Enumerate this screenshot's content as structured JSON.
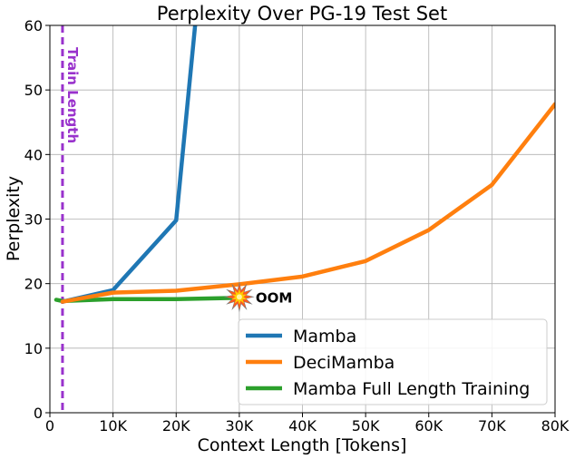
{
  "chart_data": {
    "type": "line",
    "title": "Perplexity Over PG-19 Test Set",
    "xlabel": "Context Length [Tokens]",
    "ylabel": "Perplexity",
    "xlim": [
      0,
      80000
    ],
    "ylim": [
      0,
      60
    ],
    "xticks": [
      0,
      10000,
      20000,
      30000,
      40000,
      50000,
      60000,
      70000,
      80000
    ],
    "xtick_labels": [
      "0",
      "10K",
      "20K",
      "30K",
      "40K",
      "50K",
      "60K",
      "70K",
      "80K"
    ],
    "yticks": [
      0,
      10,
      20,
      30,
      40,
      50,
      60
    ],
    "ytick_labels": [
      "0",
      "10",
      "20",
      "30",
      "40",
      "50",
      "60"
    ],
    "grid": true,
    "legend_position": "lower-right",
    "series": [
      {
        "name": "Mamba",
        "color": "#1f77b4",
        "x": [
          2000,
          10000,
          20000,
          23000
        ],
        "y": [
          17.2,
          19.0,
          29.8,
          60.0
        ]
      },
      {
        "name": "DeciMamba",
        "color": "#ff7f0e",
        "x": [
          2000,
          10000,
          20000,
          30000,
          40000,
          50000,
          60000,
          70000,
          80000
        ],
        "y": [
          17.2,
          18.6,
          18.9,
          19.9,
          21.1,
          23.5,
          28.3,
          35.3,
          47.8
        ]
      },
      {
        "name": "Mamba Full Length Training",
        "color": "#2ca02c",
        "x": [
          1000,
          2000,
          10000,
          20000,
          30000
        ],
        "y": [
          17.5,
          17.3,
          17.6,
          17.6,
          17.8
        ]
      }
    ],
    "annotations": [
      {
        "text": "Train Length",
        "x": 2000,
        "color": "#9932cc",
        "style": "dashed-vertical-line"
      },
      {
        "text": "OOM",
        "x": 30000,
        "y": 17.8,
        "icon": "explosion-icon"
      }
    ]
  }
}
